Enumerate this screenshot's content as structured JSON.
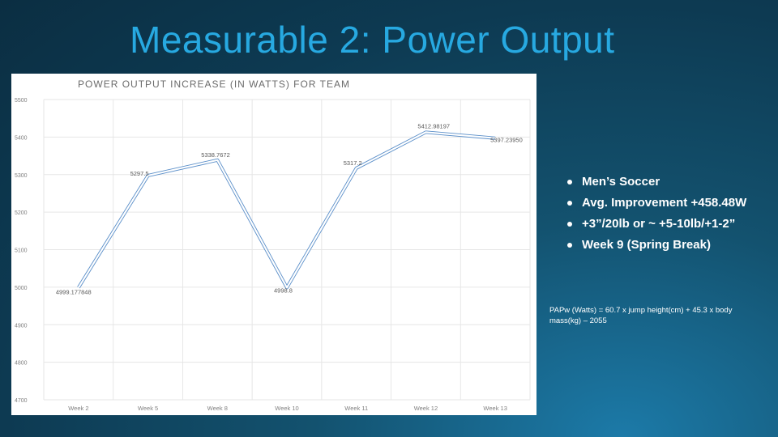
{
  "slide": {
    "title": "Measurable 2: Power Output",
    "bullets": [
      "Men’s Soccer",
      "Avg. Improvement +458.48W",
      "+3”/20lb or ~ +5-10lb/+1-2”",
      "Week 9 (Spring Break)"
    ],
    "formula": "PAPw (Watts) = 60.7 x jump height(cm) + 45.3 x body mass(kg) – 2055"
  },
  "colors": {
    "title": "#27a9e1",
    "line": "#9dc3e6",
    "line_outline": "#5b8fc9",
    "grid": "#e6e6e6",
    "axis_text": "#808080"
  },
  "chart_data": {
    "type": "line",
    "title": "POWER OUTPUT INCREASE (IN WATTS) FOR TEAM",
    "categories": [
      "Week 2",
      "Week 5",
      "Week 8",
      "Week 10",
      "Week 11",
      "Week 12",
      "Week 13"
    ],
    "series": [
      {
        "values": [
          4999.177848,
          5297.5,
          5338.7672,
          4998.8,
          5317.2,
          5412.98197,
          5397.2395
        ]
      }
    ],
    "data_labels": [
      "4999.177848",
      "5297.5",
      "5338.7672",
      "4998.8",
      "5317.2",
      "5412.98197",
      "5397.23950"
    ],
    "yticks": [
      "5500",
      "5400",
      "5300",
      "5200",
      "5100",
      "5000",
      "4900",
      "4800",
      "4700"
    ],
    "ylim": [
      4700,
      5500
    ],
    "grid": true,
    "legend": "none"
  }
}
